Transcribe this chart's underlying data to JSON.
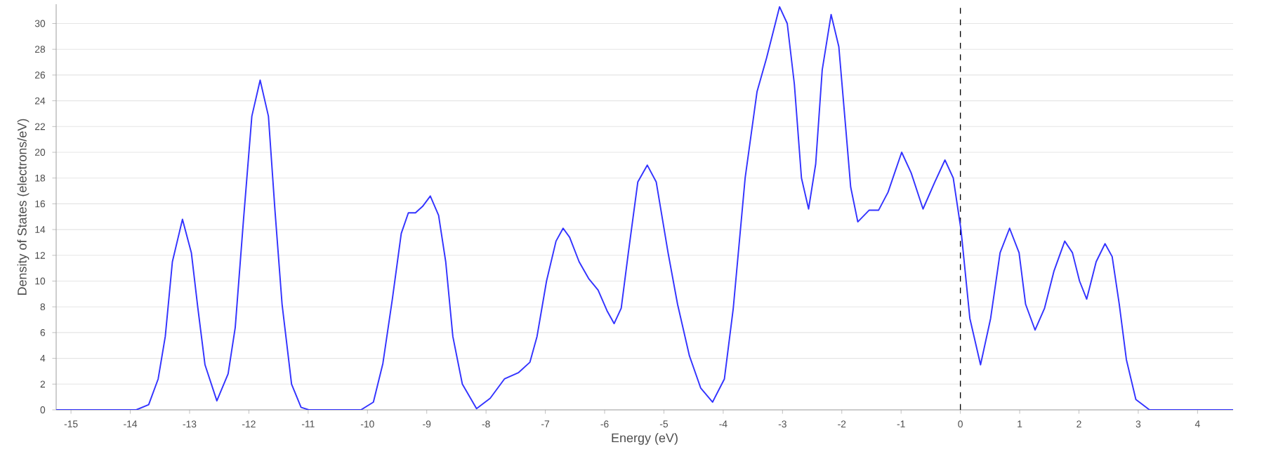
{
  "chart_data": {
    "type": "line",
    "xlabel": "Energy (eV)",
    "ylabel": "Density of States (electrons/eV)",
    "xlim": [
      -15.25,
      4.6
    ],
    "ylim": [
      0,
      31.5
    ],
    "xticks": [
      -15,
      -14,
      -13,
      -12,
      -11,
      -10,
      -9,
      -8,
      -7,
      -6,
      -5,
      -4,
      -3,
      -2,
      -1,
      0,
      1,
      2,
      3,
      4
    ],
    "yticks": [
      0,
      2,
      4,
      6,
      8,
      10,
      12,
      14,
      16,
      18,
      20,
      22,
      24,
      26,
      28,
      30
    ],
    "grid": "y",
    "marker": "none",
    "line_style": "solid",
    "ref_lines": [
      {
        "axis": "x",
        "value": 0,
        "color": "#000000",
        "line_style": "dashed"
      }
    ],
    "series": [
      {
        "color": "#3333ff",
        "x": [
          -15.25,
          -13.9,
          -13.69,
          -13.53,
          -13.41,
          -13.29,
          -13.12,
          -12.97,
          -12.86,
          -12.74,
          -12.54,
          -12.35,
          -12.23,
          -12.09,
          -11.95,
          -11.81,
          -11.67,
          -11.56,
          -11.44,
          -11.28,
          -11.12,
          -10.99,
          -10.11,
          -9.9,
          -9.74,
          -9.58,
          -9.43,
          -9.31,
          -9.19,
          -9.07,
          -8.94,
          -8.8,
          -8.68,
          -8.56,
          -8.4,
          -8.16,
          -7.93,
          -7.69,
          -7.45,
          -7.26,
          -7.14,
          -6.98,
          -6.82,
          -6.7,
          -6.59,
          -6.43,
          -6.27,
          -6.11,
          -5.96,
          -5.84,
          -5.72,
          -5.6,
          -5.44,
          -5.28,
          -5.13,
          -4.93,
          -4.77,
          -4.57,
          -4.38,
          -4.18,
          -3.98,
          -3.83,
          -3.63,
          -3.43,
          -3.27,
          -3.05,
          -2.92,
          -2.8,
          -2.68,
          -2.56,
          -2.44,
          -2.33,
          -2.18,
          -2.05,
          -1.93,
          -1.85,
          -1.73,
          -1.54,
          -1.38,
          -1.22,
          -0.99,
          -0.83,
          -0.63,
          -0.43,
          -0.26,
          -0.12,
          0.01,
          0.16,
          0.34,
          0.51,
          0.67,
          0.83,
          0.99,
          1.1,
          1.26,
          1.42,
          1.58,
          1.76,
          1.89,
          2.01,
          2.13,
          2.29,
          2.44,
          2.56,
          2.68,
          2.8,
          2.96,
          3.19,
          4.6
        ],
        "values": [
          0,
          0,
          0.4,
          2.4,
          5.7,
          11.5,
          14.8,
          12.2,
          7.9,
          3.5,
          0.7,
          2.8,
          6.4,
          14.8,
          22.8,
          25.6,
          22.8,
          15.5,
          8.2,
          2.0,
          0.2,
          0,
          0,
          0.6,
          3.6,
          8.6,
          13.7,
          15.3,
          15.3,
          15.8,
          16.6,
          15.1,
          11.5,
          5.7,
          2.0,
          0.1,
          0.9,
          2.4,
          2.9,
          3.7,
          5.7,
          10.0,
          13.1,
          14.1,
          13.4,
          11.5,
          10.2,
          9.3,
          7.7,
          6.7,
          7.9,
          12.2,
          17.7,
          19.0,
          17.7,
          12.2,
          8.2,
          4.2,
          1.7,
          0.6,
          2.4,
          7.9,
          18.0,
          24.7,
          27.3,
          31.3,
          30.0,
          25.3,
          18.0,
          15.6,
          19.1,
          26.4,
          30.7,
          28.2,
          21.7,
          17.3,
          14.6,
          15.5,
          15.5,
          16.9,
          20.0,
          18.4,
          15.6,
          17.7,
          19.4,
          18.0,
          14.0,
          7.1,
          3.5,
          7.1,
          12.2,
          14.1,
          12.2,
          8.2,
          6.2,
          7.9,
          10.8,
          13.1,
          12.2,
          10.0,
          8.6,
          11.5,
          12.9,
          11.9,
          8.2,
          3.9,
          0.8,
          0,
          0
        ]
      }
    ]
  }
}
